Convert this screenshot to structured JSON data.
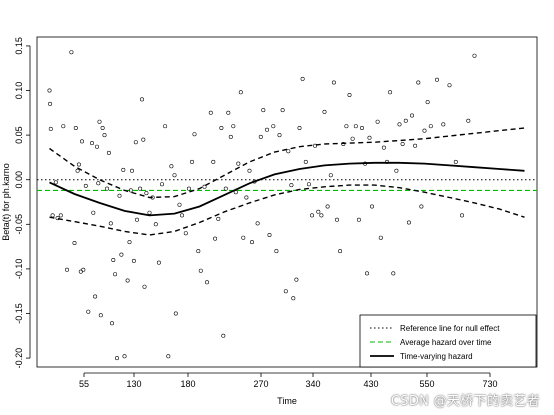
{
  "chart_data": {
    "type": "line",
    "title": "",
    "xlabel": "Time",
    "ylabel": "Beta(t) for ph.karno",
    "xlim": [
      0,
      800
    ],
    "ylim": [
      -0.21,
      0.16
    ],
    "x_ticks": [
      55,
      130,
      180,
      270,
      340,
      430,
      550,
      730
    ],
    "y_ticks": [
      -0.2,
      -0.15,
      -0.1,
      -0.05,
      0.0,
      0.05,
      0.1,
      0.15
    ],
    "y_tick_labels": [
      "-0.20",
      "-0.15",
      "-0.10",
      "-0.05",
      "0.00",
      "0.05",
      "0.10",
      "0.15"
    ],
    "legend": {
      "position": "bottom-right",
      "entries": [
        {
          "label": "Reference line for null effect",
          "style": "dotted",
          "color": "#000000"
        },
        {
          "label": "Average hazard over time",
          "style": "dashed",
          "color": "#00bb00"
        },
        {
          "label": "Time-varying hazard",
          "style": "solid",
          "color": "#000000"
        }
      ]
    },
    "reference_line": 0.0,
    "average_hazard": -0.012,
    "series": [
      {
        "name": "Time-varying hazard",
        "style": "solid",
        "x": [
          20,
          60,
          100,
          140,
          180,
          220,
          260,
          300,
          340,
          380,
          420,
          460,
          500,
          540,
          580,
          620,
          660,
          700,
          740,
          780
        ],
        "y": [
          -0.003,
          -0.016,
          -0.026,
          -0.035,
          -0.04,
          -0.038,
          -0.03,
          -0.017,
          -0.004,
          0.006,
          0.012,
          0.016,
          0.018,
          0.019,
          0.019,
          0.018,
          0.016,
          0.014,
          0.012,
          0.01
        ]
      },
      {
        "name": "Upper bound",
        "style": "dashed",
        "x": [
          20,
          60,
          100,
          140,
          180,
          220,
          260,
          300,
          340,
          380,
          420,
          460,
          500,
          540,
          580,
          620,
          660,
          700,
          740,
          780
        ],
        "y": [
          0.035,
          0.015,
          0.0,
          -0.012,
          -0.02,
          -0.019,
          -0.01,
          0.005,
          0.02,
          0.031,
          0.037,
          0.04,
          0.041,
          0.042,
          0.044,
          0.046,
          0.049,
          0.052,
          0.055,
          0.058
        ]
      },
      {
        "name": "Lower bound",
        "style": "dashed",
        "x": [
          20,
          60,
          100,
          140,
          180,
          220,
          260,
          300,
          340,
          380,
          420,
          460,
          500,
          540,
          580,
          620,
          660,
          700,
          740,
          780
        ],
        "y": [
          -0.042,
          -0.047,
          -0.052,
          -0.058,
          -0.062,
          -0.058,
          -0.048,
          -0.036,
          -0.026,
          -0.017,
          -0.011,
          -0.008,
          -0.006,
          -0.006,
          -0.009,
          -0.014,
          -0.02,
          -0.026,
          -0.033,
          -0.042
        ]
      }
    ],
    "points": [
      [
        20,
        0.1
      ],
      [
        21,
        0.085
      ],
      [
        22,
        0.057
      ],
      [
        25,
        -0.04
      ],
      [
        30,
        -0.003
      ],
      [
        33,
        -0.043
      ],
      [
        38,
        -0.04
      ],
      [
        42,
        0.06
      ],
      [
        48,
        -0.101
      ],
      [
        55,
        0.143
      ],
      [
        60,
        -0.071
      ],
      [
        62,
        0.058
      ],
      [
        65,
        0.01
      ],
      [
        67,
        0.017
      ],
      [
        70,
        -0.103
      ],
      [
        72,
        0.043
      ],
      [
        74,
        -0.101
      ],
      [
        78,
        -0.007
      ],
      [
        82,
        -0.148
      ],
      [
        88,
        0.041
      ],
      [
        90,
        -0.037
      ],
      [
        93,
        -0.131
      ],
      [
        96,
        0.037
      ],
      [
        98,
        -0.004
      ],
      [
        100,
        0.065
      ],
      [
        102,
        -0.152
      ],
      [
        105,
        0.058
      ],
      [
        108,
        0.05
      ],
      [
        112,
        -0.01
      ],
      [
        115,
        0.03
      ],
      [
        118,
        -0.049
      ],
      [
        120,
        -0.161
      ],
      [
        122,
        -0.09
      ],
      [
        125,
        -0.106
      ],
      [
        128,
        -0.2
      ],
      [
        132,
        -0.018
      ],
      [
        135,
        -0.084
      ],
      [
        138,
        0.011
      ],
      [
        140,
        -0.198
      ],
      [
        145,
        -0.113
      ],
      [
        148,
        -0.07
      ],
      [
        150,
        -0.012
      ],
      [
        152,
        0.01
      ],
      [
        155,
        -0.091
      ],
      [
        158,
        0.042
      ],
      [
        160,
        -0.045
      ],
      [
        165,
        -0.01
      ],
      [
        168,
        0.09
      ],
      [
        170,
        0.045
      ],
      [
        172,
        -0.12
      ],
      [
        175,
        -0.015
      ],
      [
        180,
        -0.037
      ],
      [
        185,
        -0.02
      ],
      [
        190,
        -0.05
      ],
      [
        195,
        -0.093
      ],
      [
        200,
        -0.005
      ],
      [
        205,
        0.06
      ],
      [
        210,
        -0.198
      ],
      [
        215,
        0.015
      ],
      [
        220,
        0.005
      ],
      [
        222,
        -0.15
      ],
      [
        228,
        -0.028
      ],
      [
        232,
        -0.04
      ],
      [
        238,
        -0.06
      ],
      [
        243,
        -0.01
      ],
      [
        248,
        0.02
      ],
      [
        252,
        0.051
      ],
      [
        258,
        -0.08
      ],
      [
        262,
        -0.102
      ],
      [
        268,
        -0.008
      ],
      [
        272,
        -0.115
      ],
      [
        278,
        0.075
      ],
      [
        282,
        0.02
      ],
      [
        285,
        -0.066
      ],
      [
        290,
        -0.044
      ],
      [
        295,
        0.058
      ],
      [
        298,
        -0.175
      ],
      [
        302,
        -0.01
      ],
      [
        306,
        0.075
      ],
      [
        310,
        0.048
      ],
      [
        314,
        0.06
      ],
      [
        318,
        -0.014
      ],
      [
        322,
        0.018
      ],
      [
        326,
        0.098
      ],
      [
        330,
        -0.065
      ],
      [
        335,
        -0.02
      ],
      [
        340,
        0.01
      ],
      [
        344,
        -0.07
      ],
      [
        348,
        -0.002
      ],
      [
        353,
        -0.049
      ],
      [
        358,
        0.048
      ],
      [
        362,
        0.078
      ],
      [
        368,
        0.056
      ],
      [
        372,
        -0.062
      ],
      [
        378,
        0.06
      ],
      [
        383,
        -0.08
      ],
      [
        388,
        0.05
      ],
      [
        393,
        0.078
      ],
      [
        398,
        -0.125
      ],
      [
        402,
        0.032
      ],
      [
        407,
        -0.006
      ],
      [
        410,
        -0.133
      ],
      [
        415,
        -0.112
      ],
      [
        420,
        0.058
      ],
      [
        425,
        0.113
      ],
      [
        430,
        0.02
      ],
      [
        435,
        -0.005
      ],
      [
        440,
        -0.04
      ],
      [
        445,
        0.038
      ],
      [
        450,
        -0.036
      ],
      [
        455,
        -0.04
      ],
      [
        460,
        0.076
      ],
      [
        465,
        -0.03
      ],
      [
        470,
        0.005
      ],
      [
        475,
        0.109
      ],
      [
        480,
        -0.045
      ],
      [
        485,
        -0.08
      ],
      [
        490,
        0.04
      ],
      [
        495,
        0.06
      ],
      [
        500,
        0.095
      ],
      [
        505,
        0.046
      ],
      [
        510,
        0.06
      ],
      [
        515,
        -0.045
      ],
      [
        520,
        0.058
      ],
      [
        525,
        0.018
      ],
      [
        528,
        -0.105
      ],
      [
        532,
        0.047
      ],
      [
        536,
        -0.03
      ],
      [
        540,
        -0.155
      ],
      [
        545,
        0.065
      ],
      [
        550,
        -0.065
      ],
      [
        555,
        0.036
      ],
      [
        560,
        0.02
      ],
      [
        565,
        0.098
      ],
      [
        570,
        -0.105
      ],
      [
        575,
        0.01
      ],
      [
        580,
        0.062
      ],
      [
        585,
        0.04
      ],
      [
        590,
        0.066
      ],
      [
        595,
        -0.048
      ],
      [
        600,
        0.072
      ],
      [
        605,
        0.038
      ],
      [
        610,
        0.109
      ],
      [
        615,
        -0.03
      ],
      [
        620,
        0.055
      ],
      [
        625,
        0.087
      ],
      [
        630,
        0.06
      ],
      [
        640,
        0.112
      ],
      [
        650,
        0.062
      ],
      [
        660,
        0.106
      ],
      [
        670,
        0.02
      ],
      [
        680,
        -0.04
      ],
      [
        690,
        0.066
      ],
      [
        700,
        0.139
      ]
    ]
  }
}
